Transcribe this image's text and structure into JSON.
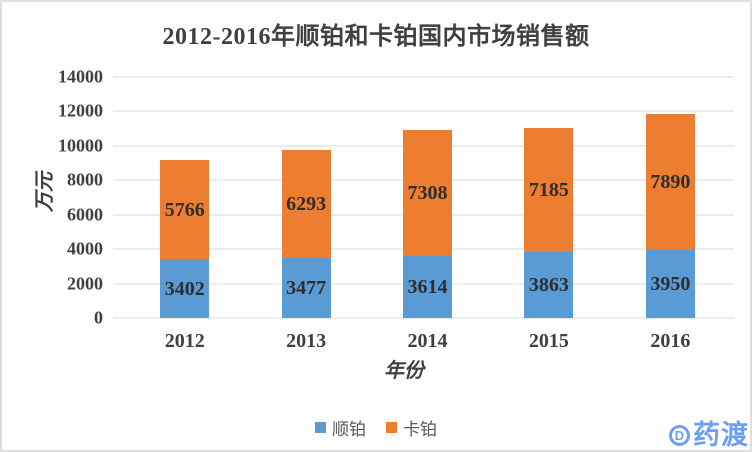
{
  "title": "2012-2016年顺铂和卡铂国内市场销售额",
  "chart_data": {
    "type": "bar",
    "stacked": true,
    "title": "2012-2016年顺铂和卡铂国内市场销售额",
    "categories": [
      "2012",
      "2013",
      "2014",
      "2015",
      "2016"
    ],
    "series": [
      {
        "name": "顺铂",
        "color": "#5B9BD5",
        "values": [
          3402,
          3477,
          3614,
          3863,
          3950
        ]
      },
      {
        "name": "卡铂",
        "color": "#ED7D31",
        "values": [
          5766,
          6293,
          7308,
          7185,
          7890
        ]
      }
    ],
    "xlabel": "年份",
    "ylabel": "万元",
    "ylim": [
      0,
      14000
    ],
    "yticks": [
      0,
      2000,
      4000,
      6000,
      8000,
      10000,
      12000,
      14000
    ],
    "grid": true,
    "data_labels": true,
    "legend_position": "bottom"
  },
  "watermark": {
    "logo_letter": "D",
    "text": "药渡",
    "color": "#6F9FF2"
  },
  "colors": {
    "series_shunbo_blue": "#5B9BD5",
    "series_kabo_orange": "#ED7D31",
    "gridline": "#D9D9D9",
    "axis_text": "#404040",
    "data_label_text": "#2E2E2E",
    "legend_text": "#595959",
    "frame_border": "#DFDFDF",
    "background": "#FFFFFF"
  }
}
